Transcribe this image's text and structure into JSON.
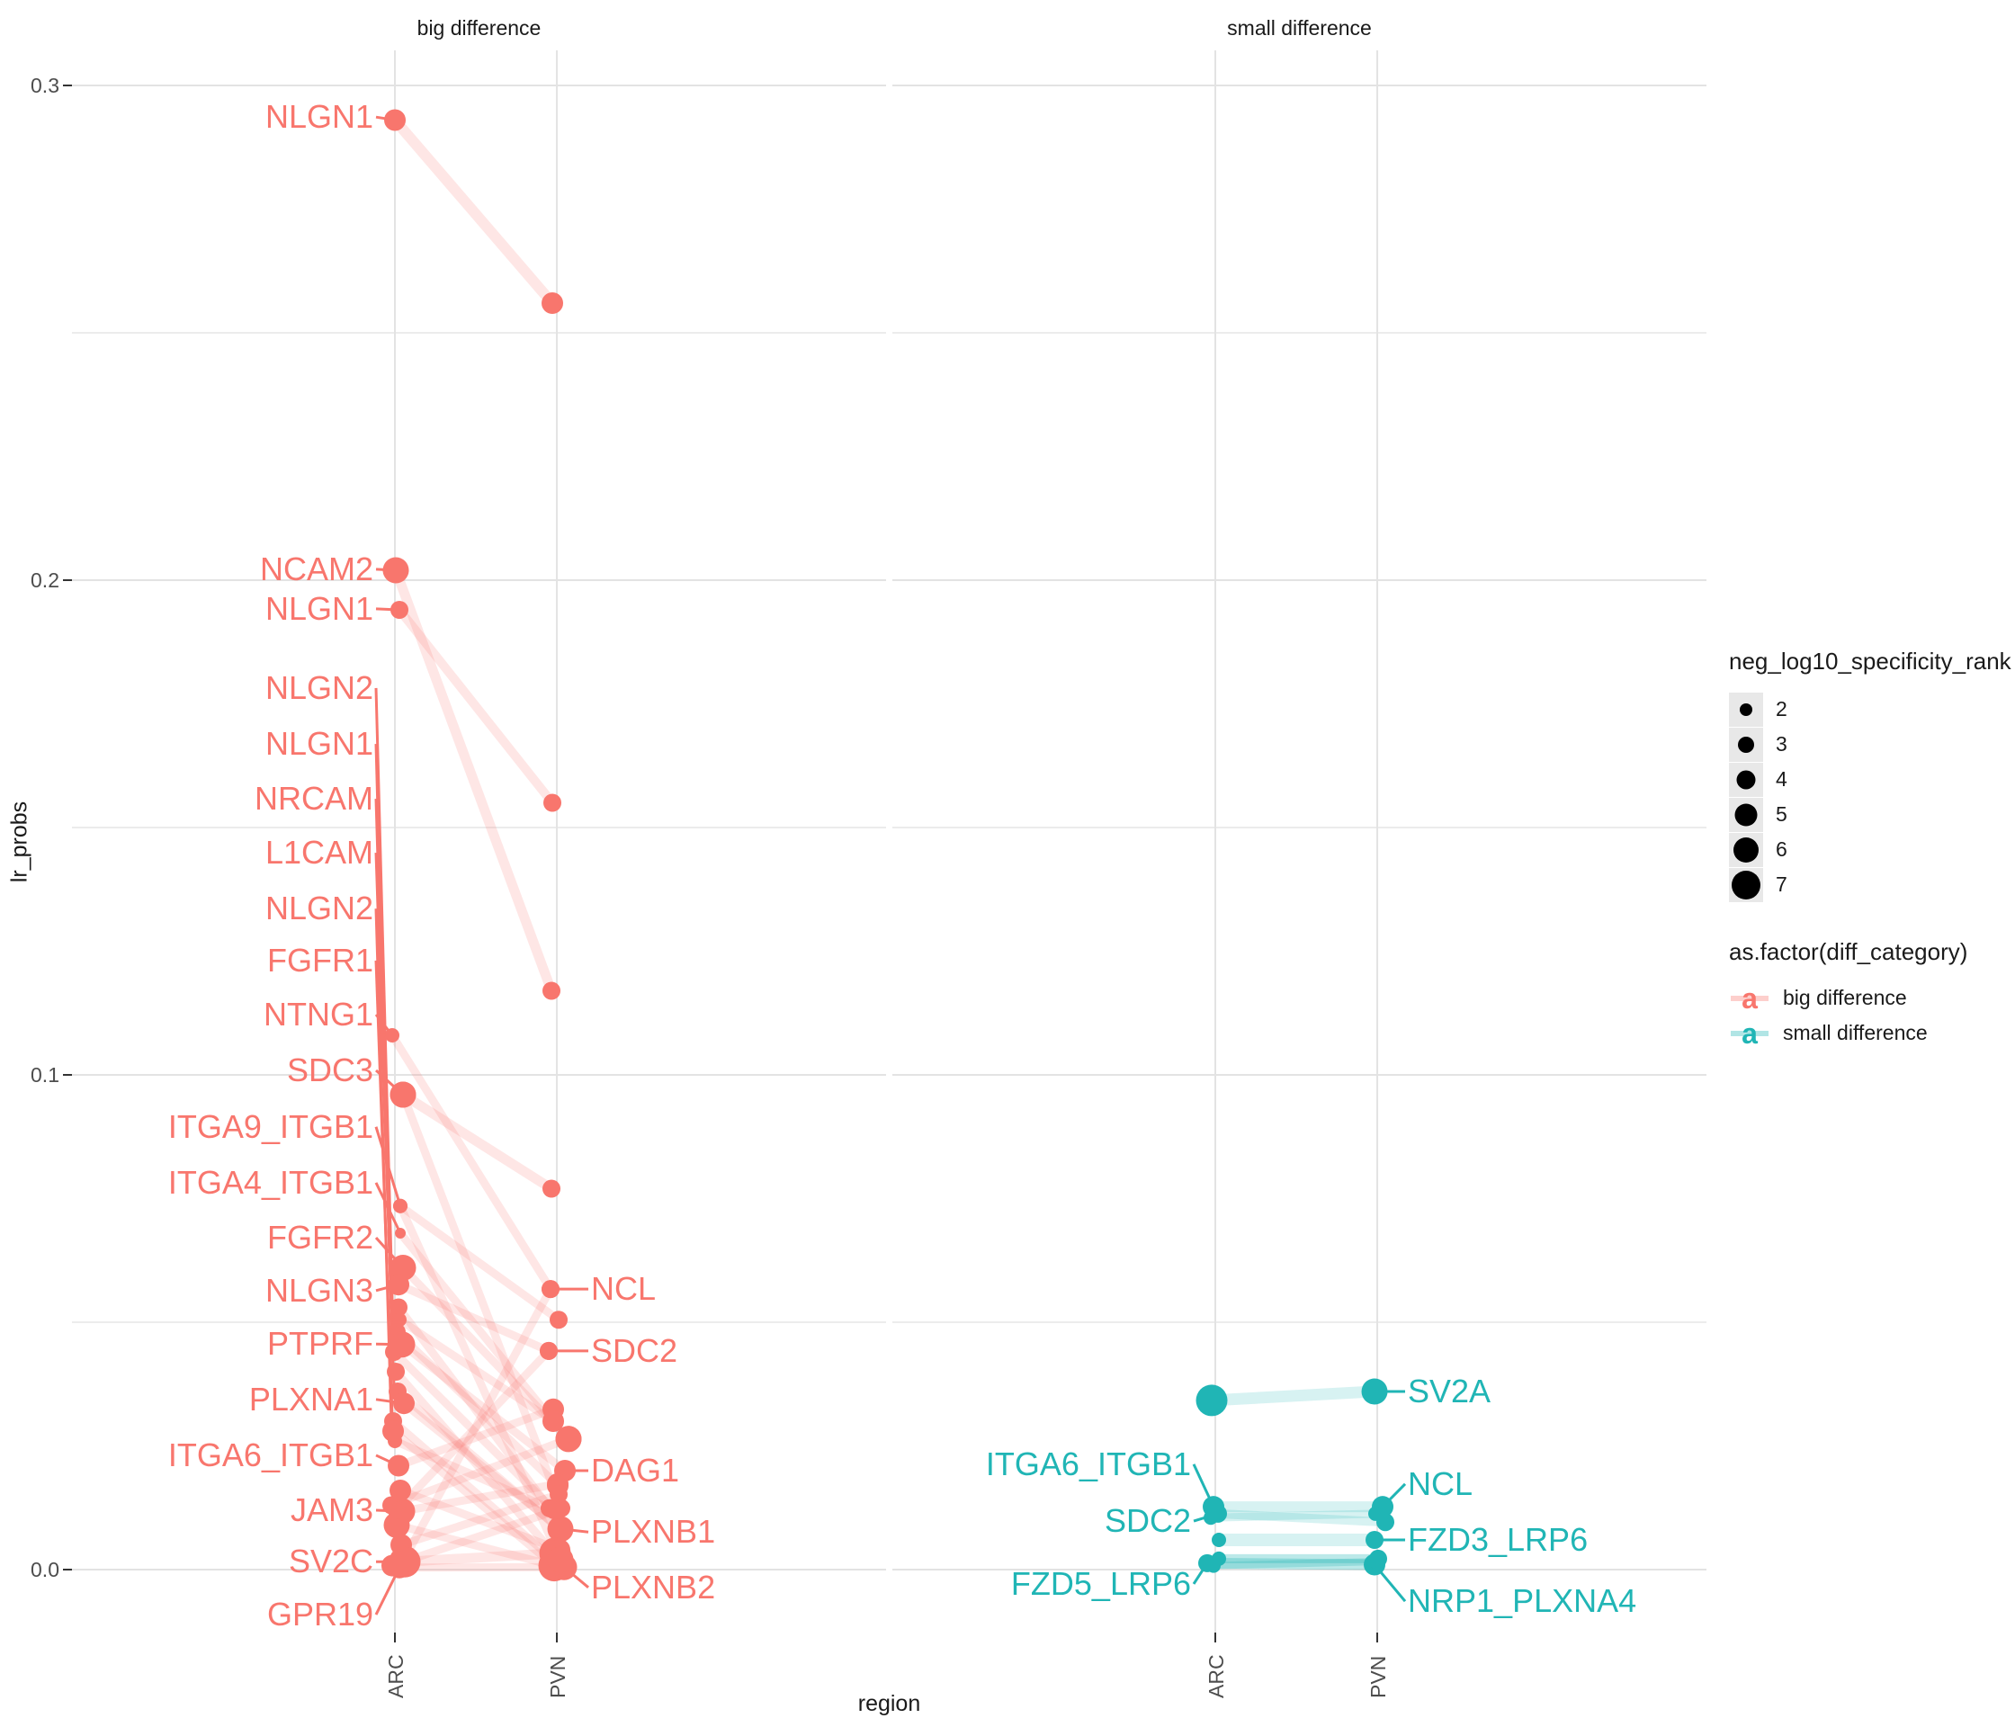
{
  "colors": {
    "big": "#F8766D",
    "small": "#20B5B5",
    "grid_major": "#E3E3E3",
    "grid_minor": "#ECECEC",
    "axis_text": "#4D4D4D",
    "tick_mark": "#333333",
    "legend_key_bg": "#E8E8E8",
    "legend_point": "#000000"
  },
  "chart_data": {
    "type": "scatter",
    "subtype": "faceted slope chart (ligand-receptor pairs across regions)",
    "xlabel": "region",
    "ylabel": "lr_probs",
    "x_categories": [
      "ARC",
      "PVN"
    ],
    "y_major": [
      0.0,
      0.1,
      0.2,
      0.3
    ],
    "y_minor": [
      0.05,
      0.15,
      0.25
    ],
    "y_tick_labels": [
      "0.0",
      "0.1",
      "0.2",
      "0.3"
    ],
    "ylim": [
      -0.013,
      0.307
    ],
    "grid": true,
    "size_legend": {
      "title": "neg_log10_specificity_rank",
      "items": [
        "2",
        "3",
        "4",
        "5",
        "6",
        "7"
      ],
      "radii": [
        7,
        9,
        10.5,
        12.5,
        14,
        16
      ]
    },
    "color_legend": {
      "title": "as.factor(diff_category)",
      "glyph": "a",
      "items": [
        {
          "label": "big difference",
          "color": "#F8766D"
        },
        {
          "label": "small difference",
          "color": "#20B5B5"
        }
      ]
    },
    "facets": [
      {
        "title": "big difference",
        "color": "#F8766D",
        "pairs": [
          {
            "name": "NLGN1",
            "arc": 0.293,
            "pvn": 0.256,
            "sa": 5,
            "sb": 5,
            "ja": 0,
            "jb": -5,
            "w": 12
          },
          {
            "name": "NCAM2",
            "arc": 0.202,
            "pvn": 0.117,
            "sa": 6,
            "sb": 4,
            "ja": 1,
            "jb": -6,
            "w": 11
          },
          {
            "name": "NLGN1",
            "arc": 0.194,
            "pvn": 0.155,
            "sa": 4,
            "sb": 4,
            "ja": 5,
            "jb": -5,
            "w": 10
          },
          {
            "name": "NLGN2",
            "arc": 0.048,
            "pvn": 0.017,
            "sa": 4,
            "sb": 5,
            "ja": 2,
            "jb": 1
          },
          {
            "name": "NLGN1",
            "arc": 0.044,
            "pvn": 0.012,
            "sa": 4,
            "sb": 4,
            "ja": -1,
            "jb": -3
          },
          {
            "name": "NRCAM",
            "arc": 0.04,
            "pvn": 0.003,
            "sa": 4,
            "sb": 5,
            "ja": 1,
            "jb": -2
          },
          {
            "name": "L1CAM",
            "arc": 0.036,
            "pvn": 0.008,
            "sa": 4,
            "sb": 4,
            "ja": 3,
            "jb": 4
          },
          {
            "name": "NLGN2",
            "arc": 0.03,
            "pvn": 0.002,
            "sa": 4,
            "sb": 4,
            "ja": -2,
            "jb": -4
          },
          {
            "name": "FGFR1",
            "arc": 0.026,
            "pvn": 0.0124,
            "sa": 3,
            "sb": 4,
            "ja": 0,
            "jb": -8
          },
          {
            "name": "NTNG1",
            "arc": 0.108,
            "pvn": 0.0567,
            "sa": 3,
            "sb": 4,
            "ja": -3,
            "jb": -7
          },
          {
            "name": "SDC3",
            "arc": 0.096,
            "pvn": 0.077,
            "sa": 6,
            "sb": 4,
            "ja": 9,
            "jb": -6,
            "w": 11
          },
          {
            "name": "ITGA9_ITGB1",
            "arc": 0.0735,
            "pvn": 0.0505,
            "sa": 3,
            "sb": 4,
            "ja": 6,
            "jb": 2
          },
          {
            "name": "ITGA4_ITGB1",
            "arc": 0.068,
            "pvn": 0.03,
            "sa": 2,
            "sb": 4,
            "ja": 6,
            "jb": -4
          },
          {
            "name": "FGFR2",
            "arc": 0.061,
            "pvn": 0.0264,
            "sa": 6,
            "sb": 6,
            "ja": 9,
            "jb": 13
          },
          {
            "name": "NLGN3",
            "arc": 0.0576,
            "pvn": 0.0442,
            "sa": 5,
            "sb": 4,
            "ja": 4,
            "jb": -9
          },
          {
            "name": "PTPRF",
            "arc": 0.0455,
            "pvn": 0.02,
            "sa": 6,
            "sb": 5,
            "ja": 8,
            "jb": 9
          },
          {
            "name": "PLXNA1",
            "arc": 0.0336,
            "pvn": 0.0082,
            "sa": 5,
            "sb": 6,
            "ja": 10,
            "jb": 4
          },
          {
            "name": "ITGA6_ITGB1",
            "arc": 0.021,
            "pvn": 0.0324,
            "sa": 5,
            "sb": 5,
            "ja": 4,
            "jb": -4
          },
          {
            "name": "JAM3",
            "arc": 0.0118,
            "pvn": 0.0173,
            "sa": 6,
            "sb": 5,
            "ja": 8,
            "jb": 1
          },
          {
            "name": "SV2C",
            "arc": 0.0016,
            "pvn": 0.0033,
            "sa": 7,
            "sb": 7,
            "ja": 11,
            "jb": -2,
            "w": 11
          },
          {
            "name": "GPR19",
            "arc": 0.0004,
            "pvn": 0.0005,
            "sa": 5,
            "sb": 6,
            "ja": 5,
            "jb": 8
          },
          {
            "name": "",
            "arc": 0.053,
            "pvn": 0.0124,
            "sa": 4,
            "sb": 4,
            "ja": 4,
            "jb": -8
          },
          {
            "name": "",
            "arc": 0.0505,
            "pvn": 0.03,
            "sa": 3,
            "sb": 5,
            "ja": 5,
            "jb": -4
          },
          {
            "name": "",
            "arc": 0.028,
            "pvn": 0.0005,
            "sa": 5,
            "sb": 6,
            "ja": -2,
            "jb": -1
          },
          {
            "name": "",
            "arc": 0.016,
            "pvn": 0.004,
            "sa": 5,
            "sb": 5,
            "ja": 6,
            "jb": 3
          },
          {
            "name": "",
            "arc": 0.009,
            "pvn": 0.0008,
            "sa": 6,
            "sb": 7,
            "ja": 2,
            "jb": -3
          },
          {
            "name": "",
            "arc": 0.013,
            "pvn": 0.0264,
            "sa": 4,
            "sb": 6,
            "ja": -4,
            "jb": 13
          },
          {
            "name": "",
            "arc": 0.005,
            "pvn": 0.0152,
            "sa": 5,
            "sb": 4,
            "ja": 7,
            "jb": 2
          },
          {
            "name": "",
            "arc": 0.002,
            "pvn": 0.0567,
            "sa": 6,
            "sb": 4,
            "ja": 10,
            "jb": -7
          },
          {
            "name": "",
            "arc": 0.012,
            "pvn": 0.0442,
            "sa": 4,
            "sb": 4,
            "ja": 2,
            "jb": -9
          },
          {
            "name": "",
            "arc": 0.096,
            "pvn": 0.0124,
            "sa": 6,
            "sb": 4,
            "ja": 9,
            "jb": 5
          },
          {
            "name": "",
            "arc": 0.0735,
            "pvn": 0.002,
            "sa": 3,
            "sb": 6,
            "ja": 6,
            "jb": 4
          },
          {
            "name": "",
            "arc": 0.0008,
            "pvn": 0.012,
            "sa": 5,
            "sb": 4,
            "ja": -3,
            "jb": 0
          }
        ],
        "labels_left": [
          {
            "text": "NLGN1",
            "ly": 0.2936,
            "tv": 0.293,
            "tj": 0
          },
          {
            "text": "NCAM2",
            "ly": 0.2022,
            "tv": 0.202,
            "tj": 1
          },
          {
            "text": "NLGN1",
            "ly": 0.1942,
            "tv": 0.194,
            "tj": 5
          },
          {
            "text": "NLGN2",
            "ly": 0.1782,
            "tv": 0.048,
            "tj": -2
          },
          {
            "text": "NLGN1",
            "ly": 0.1669,
            "tv": 0.044,
            "tj": -3
          },
          {
            "text": "NRCAM",
            "ly": 0.1558,
            "tv": 0.04,
            "tj": -2
          },
          {
            "text": "L1CAM",
            "ly": 0.1449,
            "tv": 0.036,
            "tj": -1
          },
          {
            "text": "NLGN2",
            "ly": 0.1336,
            "tv": 0.03,
            "tj": -4
          },
          {
            "text": "FGFR1",
            "ly": 0.1231,
            "tv": 0.026,
            "tj": -2
          },
          {
            "text": "NTNG1",
            "ly": 0.1122,
            "tv": 0.108,
            "tj": -3
          },
          {
            "text": "SDC3",
            "ly": 0.1009,
            "tv": 0.096,
            "tj": 9
          },
          {
            "text": "ITGA9_ITGB1",
            "ly": 0.0895,
            "tv": 0.0735,
            "tj": 6
          },
          {
            "text": "ITGA4_ITGB1",
            "ly": 0.0782,
            "tv": 0.068,
            "tj": 6
          },
          {
            "text": "FGFR2",
            "ly": 0.0671,
            "tv": 0.061,
            "tj": 9
          },
          {
            "text": "NLGN3",
            "ly": 0.0564,
            "tv": 0.0576,
            "tj": 4
          },
          {
            "text": "PTPRF",
            "ly": 0.0456,
            "tv": 0.0455,
            "tj": 8
          },
          {
            "text": "PLXNA1",
            "ly": 0.0344,
            "tv": 0.0336,
            "tj": 10
          },
          {
            "text": "ITGA6_ITGB1",
            "ly": 0.0231,
            "tv": 0.021,
            "tj": 4
          },
          {
            "text": "JAM3",
            "ly": 0.012,
            "tv": 0.0118,
            "tj": 8
          },
          {
            "text": "SV2C",
            "ly": 0.0016,
            "tv": 0.0016,
            "tj": 11
          },
          {
            "text": "GPR19",
            "ly": -0.0091,
            "tv": 0.0004,
            "tj": 5
          }
        ],
        "labels_right": [
          {
            "text": "NCL",
            "ly": 0.0567,
            "tv": 0.0567,
            "tj": -7
          },
          {
            "text": "SDC2",
            "ly": 0.0442,
            "tv": 0.0442,
            "tj": -9
          },
          {
            "text": "DAG1",
            "ly": 0.02,
            "tv": 0.02,
            "tj": 9
          },
          {
            "text": "PLXNB1",
            "ly": 0.0076,
            "tv": 0.0082,
            "tj": 4
          },
          {
            "text": "PLXNB2",
            "ly": -0.0036,
            "tv": 0.0005,
            "tj": 8
          }
        ]
      },
      {
        "title": "small difference",
        "color": "#20B5B5",
        "pairs": [
          {
            "name": "SV2A",
            "arc": 0.0342,
            "pvn": 0.036,
            "sa": 7,
            "sb": 6,
            "ja": -4,
            "jb": -3,
            "w": 13
          },
          {
            "name": "ITGA6_ITGB1",
            "arc": 0.0127,
            "pvn": 0.0127,
            "sa": 5,
            "sb": 5,
            "ja": -2,
            "jb": 6,
            "w": 12
          },
          {
            "name": "SDC2",
            "arc": 0.0113,
            "pvn": 0.0096,
            "sa": 4,
            "sb": 4,
            "ja": 3,
            "jb": 9,
            "w": 10
          },
          {
            "name": "",
            "arc": 0.0105,
            "pvn": 0.0113,
            "sa": 3,
            "sb": 3,
            "ja": -5,
            "jb": -2,
            "w": 9
          },
          {
            "name": "FZD3_LRP6",
            "arc": 0.006,
            "pvn": 0.006,
            "sa": 3,
            "sb": 4,
            "ja": 4,
            "jb": -3,
            "w": 14
          },
          {
            "name": "FZD5_LRP6",
            "arc": 0.0013,
            "pvn": 0.001,
            "sa": 4,
            "sb": 5,
            "ja": -9,
            "jb": -3,
            "w": 12,
            "o": 0.3
          },
          {
            "name": "",
            "arc": 0.0022,
            "pvn": 0.0022,
            "sa": 3,
            "sb": 4,
            "ja": 4,
            "jb": 1,
            "w": 10,
            "o": 0.3
          },
          {
            "name": "",
            "arc": 0.0008,
            "pvn": 0.0016,
            "sa": 3,
            "sb": 3,
            "ja": -2,
            "jb": -2,
            "w": 8,
            "o": 0.25
          }
        ],
        "labels_left": [
          {
            "text": "ITGA6_ITGB1",
            "ly": 0.0213,
            "tv": 0.0127,
            "tj": -2
          },
          {
            "text": "SDC2",
            "ly": 0.0098,
            "tv": 0.0113,
            "tj": 3
          },
          {
            "text": "FZD5_LRP6",
            "ly": -0.0029,
            "tv": 0.0013,
            "tj": -9
          }
        ],
        "labels_right": [
          {
            "text": "SV2A",
            "ly": 0.036,
            "tv": 0.036,
            "tj": -3
          },
          {
            "text": "NCL",
            "ly": 0.0173,
            "tv": 0.0127,
            "tj": 6
          },
          {
            "text": "FZD3_LRP6",
            "ly": 0.006,
            "tv": 0.006,
            "tj": -3
          },
          {
            "text": "NRP1_PLXNA4",
            "ly": -0.0064,
            "tv": 0.001,
            "tj": -3
          }
        ]
      }
    ]
  }
}
